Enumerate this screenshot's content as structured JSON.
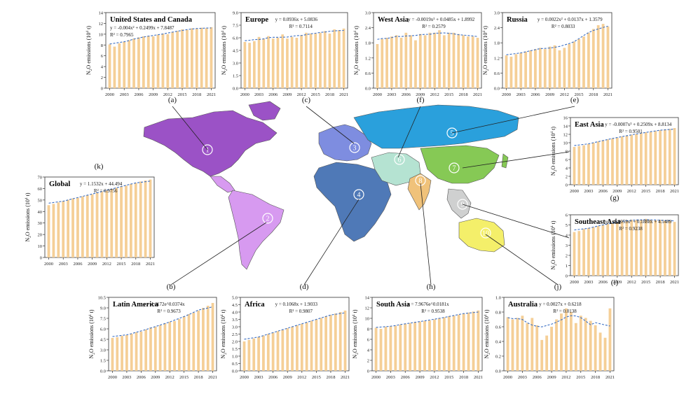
{
  "figure": {
    "ylabel_prefix": "N",
    "ylabel_sub": "2",
    "ylabel_mid": "O emissions (10",
    "ylabel_sup": "4",
    "ylabel_suffix": " t)",
    "years": [
      2000,
      2001,
      2002,
      2003,
      2004,
      2005,
      2006,
      2007,
      2008,
      2009,
      2010,
      2011,
      2012,
      2013,
      2014,
      2015,
      2016,
      2017,
      2018,
      2019,
      2020,
      2021
    ],
    "x_ticks": [
      "2000",
      "2003",
      "2006",
      "2009",
      "2012",
      "2015",
      "2018",
      "2021"
    ],
    "colors": {
      "bar": "#f5cf97",
      "trend": "#3b6fc4",
      "line": "#222222"
    },
    "region_colors": [
      "#9b52c6",
      "#d79af0",
      "#7e8de0",
      "#4f79b7",
      "#2aa0dc",
      "#b5e3d2",
      "#86c955",
      "#f0c27a",
      "#cfd0d0",
      "#f4ef6a"
    ],
    "region_numbers": [
      "1",
      "2",
      "3",
      "4",
      "5",
      "6",
      "7",
      "8",
      "9",
      "10"
    ]
  },
  "chart_data": [
    {
      "letter": "(a)",
      "type": "bar",
      "title": "United States and Canada",
      "equation": "y = -0.004x² + 0.2499x + 7.8487",
      "r2": "R² = 0.7965",
      "ylim": [
        0,
        14
      ],
      "yticks": [
        "0",
        "2",
        "4",
        "6",
        "8",
        "10",
        "12",
        "14"
      ],
      "values": [
        8.1,
        7.7,
        8.3,
        8.6,
        8.9,
        9.2,
        9.4,
        9.6,
        9.7,
        9.6,
        9.9,
        10.1,
        10.0,
        10.4,
        10.6,
        10.9,
        10.8,
        11.1,
        11.0,
        11.2,
        11.1,
        11.3
      ]
    },
    {
      "letter": "(c)",
      "type": "bar",
      "title": "Europe",
      "equation": "y = 0.0936x + 5.0836",
      "r2": "R² = 0.7114",
      "ylim": [
        0,
        9
      ],
      "yticks": [
        "0.0",
        "1.5",
        "3.0",
        "4.5",
        "6.0",
        "7.5",
        "9.0"
      ],
      "values": [
        5.5,
        5.4,
        5.6,
        6.1,
        5.9,
        6.2,
        5.9,
        6.0,
        6.4,
        5.9,
        6.1,
        6.0,
        6.3,
        6.6,
        6.5,
        6.5,
        6.6,
        6.8,
        6.5,
        7.0,
        6.9,
        7.1
      ]
    },
    {
      "letter": "(f)",
      "type": "bar",
      "title": "West Asia",
      "equation": "y = -0.0019x² + 0.0485x + 1.8992",
      "r2": "R² = 0.2579",
      "ylim": [
        0,
        3
      ],
      "yticks": [
        "0.0",
        "0.6",
        "1.2",
        "1.8",
        "2.4",
        "3.0"
      ],
      "values": [
        1.75,
        1.95,
        2.0,
        2.05,
        2.1,
        2.0,
        2.2,
        2.1,
        1.9,
        2.15,
        2.1,
        2.2,
        2.2,
        2.3,
        2.1,
        2.2,
        2.2,
        2.15,
        2.1,
        2.05,
        2.05,
        2.0
      ]
    },
    {
      "letter": "(e)",
      "type": "bar",
      "title": "Russia",
      "equation": "y = 0.0022x² + 0.0137x + 1.3579",
      "r2": "R² = 0.8033",
      "ylim": [
        0,
        3
      ],
      "yticks": [
        "0.0",
        "0.6",
        "1.2",
        "1.8",
        "2.4",
        "3.0"
      ],
      "values": [
        1.3,
        1.25,
        1.35,
        1.4,
        1.45,
        1.5,
        1.55,
        1.6,
        1.55,
        1.65,
        1.7,
        1.5,
        1.6,
        1.75,
        1.85,
        1.95,
        2.05,
        2.2,
        2.35,
        2.5,
        2.55,
        2.45
      ]
    },
    {
      "letter": "(g)",
      "type": "bar",
      "title": "East Asia",
      "equation": "y = -0.0007x² + 0.2509x + 8.8134",
      "r2": "R² = 0.9501",
      "ylim": [
        0,
        16
      ],
      "yticks": [
        "0",
        "2",
        "4",
        "6",
        "8",
        "10",
        "12",
        "14",
        "16"
      ],
      "values": [
        9.0,
        9.2,
        9.4,
        9.7,
        10.0,
        10.3,
        10.6,
        10.8,
        11.0,
        11.2,
        11.5,
        11.7,
        11.9,
        12.1,
        12.3,
        12.5,
        12.6,
        12.8,
        13.0,
        13.2,
        13.3,
        13.5
      ]
    },
    {
      "letter": "(k)",
      "type": "bar",
      "title": "Global",
      "equation": "y = 1.1532x + 44.494",
      "r2": "R² = 0.9756",
      "ylim": [
        0,
        70
      ],
      "yticks": [
        "0",
        "10",
        "20",
        "30",
        "40",
        "50",
        "60",
        "70"
      ],
      "values": [
        45.5,
        46.6,
        47.9,
        49.0,
        50.2,
        51.4,
        52.0,
        53.1,
        54.2,
        55.0,
        56.3,
        57.5,
        58.3,
        59.6,
        60.8,
        61.9,
        62.5,
        63.9,
        64.9,
        66.1,
        67.0,
        67.8
      ]
    },
    {
      "letter": "(i)",
      "type": "bar",
      "title": "Southeast Asia",
      "equation": "y = -0.0059x² + 0.1888x + 4.1489",
      "r2": "R² = 0.9238",
      "ylim": [
        0,
        6
      ],
      "yticks": [
        "0",
        "1",
        "2",
        "3",
        "4",
        "5",
        "6"
      ],
      "values": [
        4.3,
        4.4,
        4.6,
        4.7,
        4.8,
        4.9,
        5.0,
        5.1,
        5.2,
        5.3,
        5.4,
        5.4,
        5.5,
        5.5,
        5.5,
        5.6,
        5.5,
        5.5,
        5.5,
        5.4,
        5.4,
        5.3
      ]
    },
    {
      "letter": "(b)",
      "type": "bar",
      "title": "Latin America",
      "equation": "y = 4.4172e^0.0374x",
      "r2": "R² = 0.9673",
      "ylim": [
        0,
        10.5
      ],
      "yticks": [
        "0.0",
        "1.5",
        "3.0",
        "4.5",
        "6.0",
        "7.5",
        "9.0",
        "10.5"
      ],
      "values": [
        4.7,
        4.8,
        5.0,
        5.1,
        5.3,
        5.5,
        5.6,
        5.9,
        6.2,
        6.3,
        6.5,
        6.8,
        7.0,
        7.1,
        7.4,
        7.8,
        8.1,
        8.3,
        8.6,
        9.0,
        9.3,
        9.7
      ]
    },
    {
      "letter": "(d)",
      "type": "bar",
      "title": "Africa",
      "equation": "y = 0.1068x + 1.9033",
      "r2": "R² = 0.9807",
      "ylim": [
        0,
        5
      ],
      "yticks": [
        "0.0",
        "0.5",
        "1.0",
        "1.5",
        "2.0",
        "2.5",
        "3.0",
        "3.5",
        "4.0",
        "4.5",
        "5.0"
      ],
      "values": [
        2.0,
        2.1,
        2.2,
        2.3,
        2.4,
        2.5,
        2.6,
        2.7,
        2.8,
        2.9,
        3.0,
        3.1,
        3.2,
        3.3,
        3.4,
        3.5,
        3.6,
        3.7,
        3.8,
        3.9,
        4.0,
        4.1
      ]
    },
    {
      "letter": "(h)",
      "type": "bar",
      "title": "South Asia",
      "equation": "y = 7.9676e^0.0181x",
      "r2": "R² = 0.9538",
      "ylim": [
        0,
        14
      ],
      "yticks": [
        "0",
        "2",
        "4",
        "6",
        "8",
        "10",
        "12",
        "14"
      ],
      "values": [
        8.2,
        8.0,
        8.4,
        8.5,
        8.6,
        8.8,
        9.0,
        9.1,
        9.3,
        9.4,
        9.5,
        9.6,
        9.8,
        10.0,
        10.2,
        10.4,
        10.5,
        10.7,
        10.9,
        11.1,
        11.3,
        11.5
      ]
    },
    {
      "letter": "(j)",
      "type": "bar",
      "title": "Australia",
      "equation": "y = 0.0027x + 0.6218",
      "r2": "R² = 0.0138",
      "ylim": [
        0,
        1.0
      ],
      "yticks": [
        "0.0",
        "0.2",
        "0.4",
        "0.6",
        "0.8",
        "1.0"
      ],
      "values": [
        0.73,
        0.7,
        0.72,
        0.75,
        0.65,
        0.72,
        0.62,
        0.42,
        0.48,
        0.6,
        0.7,
        0.78,
        0.85,
        0.8,
        0.65,
        0.75,
        0.72,
        0.68,
        0.62,
        0.52,
        0.45,
        0.85
      ]
    }
  ]
}
